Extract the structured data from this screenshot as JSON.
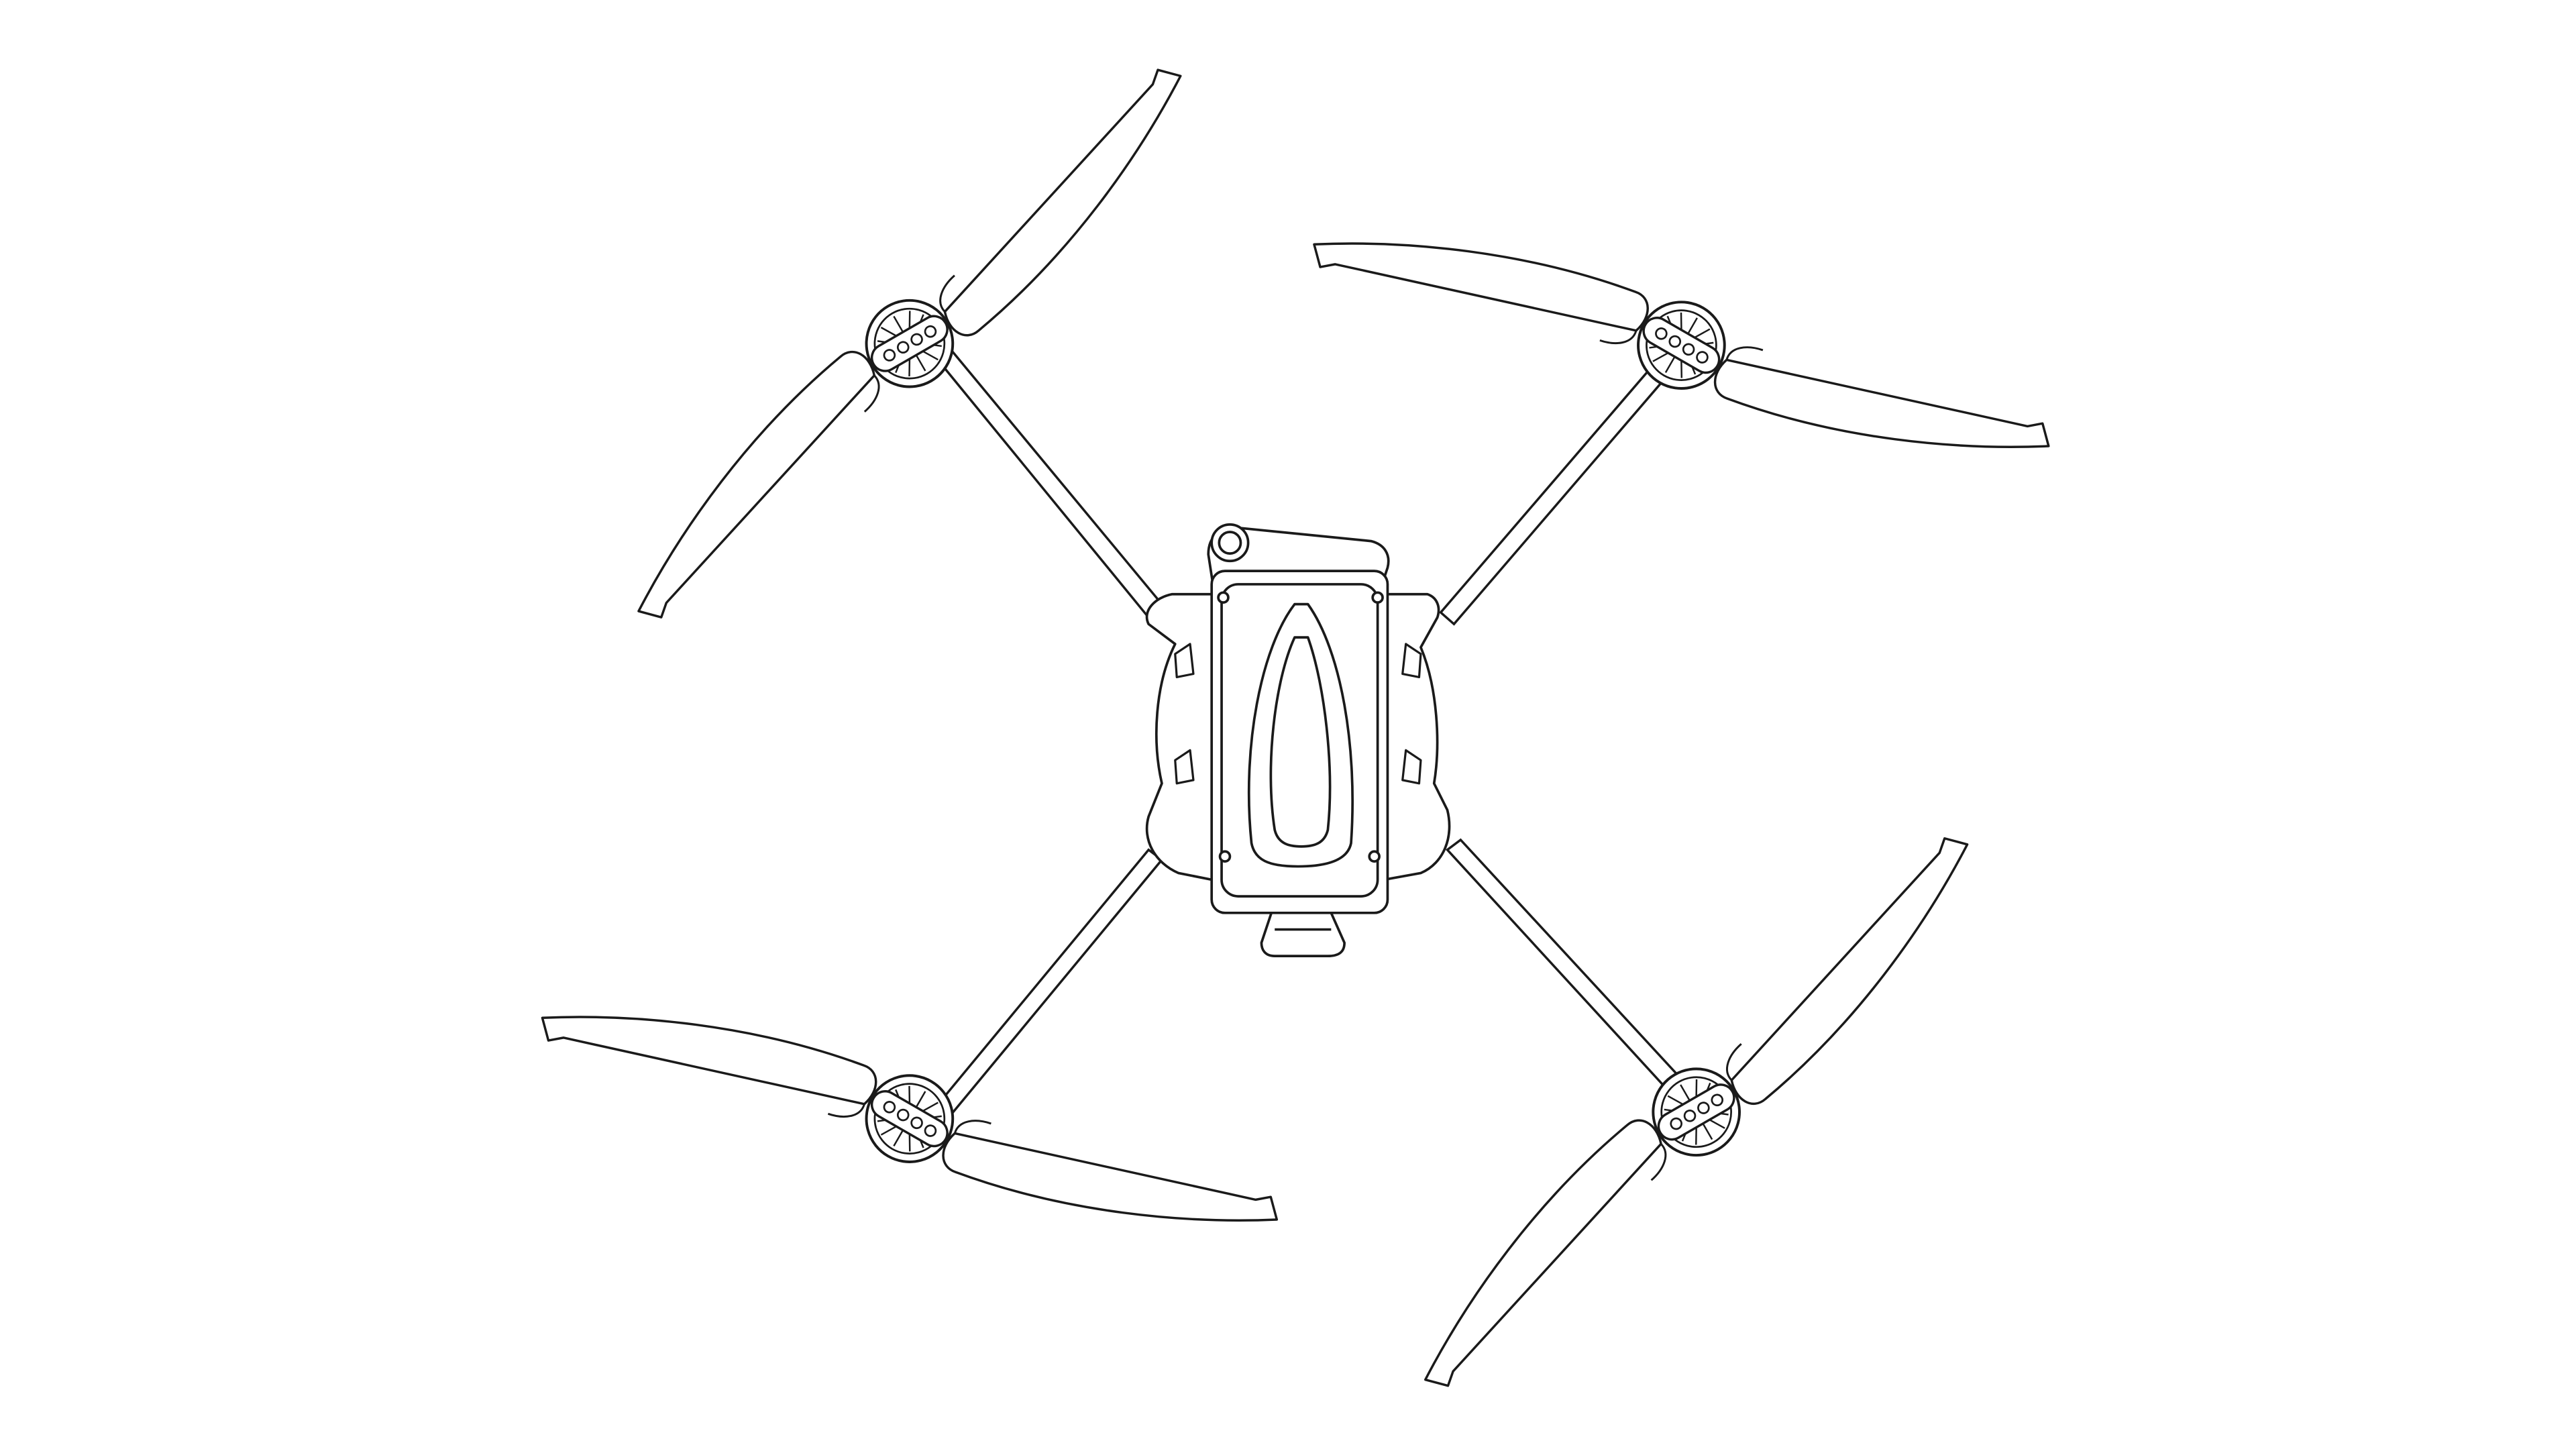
{
  "colors": {
    "background": "#ffffff",
    "line": "#1a1a1a"
  },
  "icons": {
    "subject": "drone-icon"
  }
}
